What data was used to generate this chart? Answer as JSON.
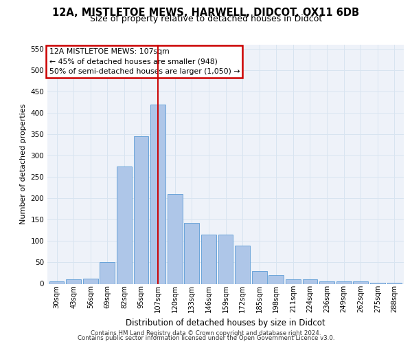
{
  "title_line1": "12A, MISTLETOE MEWS, HARWELL, DIDCOT, OX11 6DB",
  "title_line2": "Size of property relative to detached houses in Didcot",
  "xlabel": "Distribution of detached houses by size in Didcot",
  "ylabel": "Number of detached properties",
  "categories": [
    "30sqm",
    "43sqm",
    "56sqm",
    "69sqm",
    "82sqm",
    "95sqm",
    "107sqm",
    "120sqm",
    "133sqm",
    "146sqm",
    "159sqm",
    "172sqm",
    "185sqm",
    "198sqm",
    "211sqm",
    "224sqm",
    "236sqm",
    "249sqm",
    "262sqm",
    "275sqm",
    "288sqm"
  ],
  "values": [
    5,
    10,
    12,
    50,
    275,
    345,
    420,
    210,
    143,
    115,
    115,
    90,
    30,
    20,
    11,
    11,
    5,
    5,
    5,
    2,
    3
  ],
  "bar_color": "#aec6e8",
  "bar_edge_color": "#5b9bd5",
  "grid_color": "#d8e4f0",
  "vline_x": 6,
  "vline_color": "#cc0000",
  "annotation_box_color": "#cc0000",
  "annotation_text_line1": "12A MISTLETOE MEWS: 107sqm",
  "annotation_text_line2": "← 45% of detached houses are smaller (948)",
  "annotation_text_line3": "50% of semi-detached houses are larger (1,050) →",
  "ylim": [
    0,
    560
  ],
  "yticks": [
    0,
    50,
    100,
    150,
    200,
    250,
    300,
    350,
    400,
    450,
    500,
    550
  ],
  "footer_line1": "Contains HM Land Registry data © Crown copyright and database right 2024.",
  "footer_line2": "Contains public sector information licensed under the Open Government Licence v3.0.",
  "bg_color": "#eef2f9"
}
